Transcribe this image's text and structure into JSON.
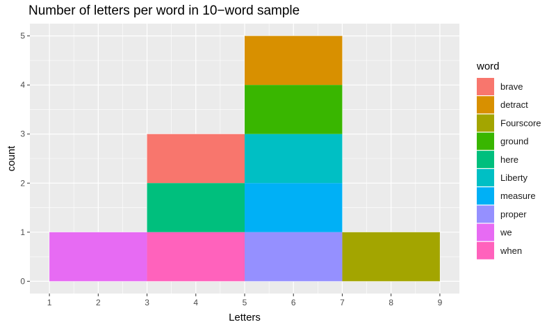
{
  "chart_data": {
    "type": "bar",
    "title": "Number of letters per word in 10−word sample",
    "xlabel": "Letters",
    "ylabel": "count",
    "xlim": [
      0.6,
      9.4
    ],
    "ylim": [
      -0.25,
      5.25
    ],
    "x_ticks": [
      1,
      2,
      3,
      4,
      5,
      6,
      7,
      8,
      9
    ],
    "y_ticks": [
      0,
      1,
      2,
      3,
      4,
      5
    ],
    "grid": true,
    "legend_position": "right",
    "legend_title": "word",
    "series": [
      {
        "name": "brave",
        "color": "#F8766D",
        "bin": [
          3,
          5
        ],
        "ymin": 2,
        "ymax": 3
      },
      {
        "name": "detract",
        "color": "#D89000",
        "bin": [
          5,
          7
        ],
        "ymin": 4,
        "ymax": 5
      },
      {
        "name": "Fourscore",
        "color": "#A3A500",
        "bin": [
          7,
          9
        ],
        "ymin": 0,
        "ymax": 1
      },
      {
        "name": "ground",
        "color": "#39B600",
        "bin": [
          5,
          7
        ],
        "ymin": 3,
        "ymax": 4
      },
      {
        "name": "here",
        "color": "#00BF7D",
        "bin": [
          3,
          5
        ],
        "ymin": 1,
        "ymax": 2
      },
      {
        "name": "Liberty",
        "color": "#00BFC4",
        "bin": [
          5,
          7
        ],
        "ymin": 2,
        "ymax": 3
      },
      {
        "name": "measure",
        "color": "#00B0F6",
        "bin": [
          5,
          7
        ],
        "ymin": 1,
        "ymax": 2
      },
      {
        "name": "proper",
        "color": "#9590FF",
        "bin": [
          5,
          7
        ],
        "ymin": 0,
        "ymax": 1
      },
      {
        "name": "we",
        "color": "#E76BF3",
        "bin": [
          1,
          3
        ],
        "ymin": 0,
        "ymax": 1
      },
      {
        "name": "when",
        "color": "#FF62BC",
        "bin": [
          3,
          5
        ],
        "ymin": 0,
        "ymax": 1
      }
    ]
  }
}
